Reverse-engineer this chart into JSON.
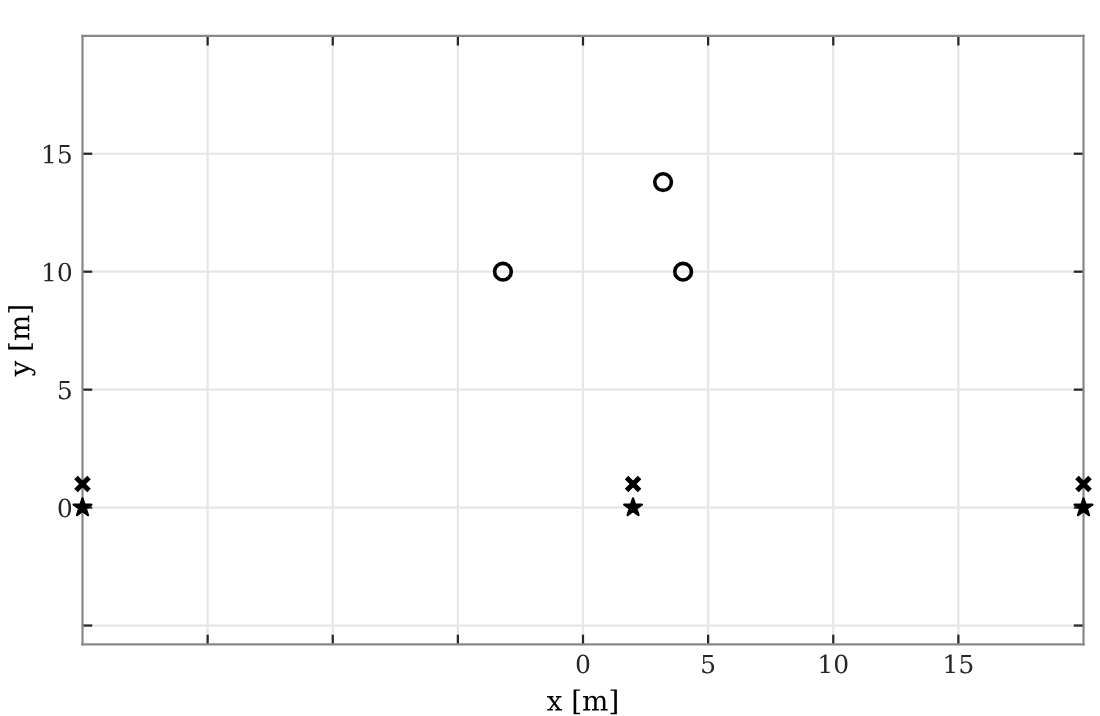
{
  "chart_data": {
    "type": "scatter",
    "xlabel": "x [m]",
    "ylabel": "y [m]",
    "grid": true,
    "xlim": [
      -20,
      20
    ],
    "ylim": [
      -5.8,
      20
    ],
    "xticks": [
      {
        "value": -15,
        "label": null
      },
      {
        "value": -10,
        "label": null
      },
      {
        "value": -5,
        "label": null
      },
      0,
      5,
      10,
      15
    ],
    "yticks": [
      {
        "value": -5,
        "label": null
      },
      0,
      5,
      10,
      15
    ],
    "series": [
      {
        "color": "#000000",
        "marker": "circle",
        "x": [
          -3.2,
          4,
          3.2
        ],
        "values": [
          10,
          10,
          13.8
        ]
      },
      {
        "color": "#000000",
        "marker": "cross",
        "x": [
          -20,
          2,
          20
        ],
        "values": [
          1,
          1,
          1
        ]
      },
      {
        "color": "#000000",
        "marker": "star",
        "x": [
          -20,
          2,
          20
        ],
        "values": [
          0,
          0,
          0
        ]
      }
    ]
  }
}
